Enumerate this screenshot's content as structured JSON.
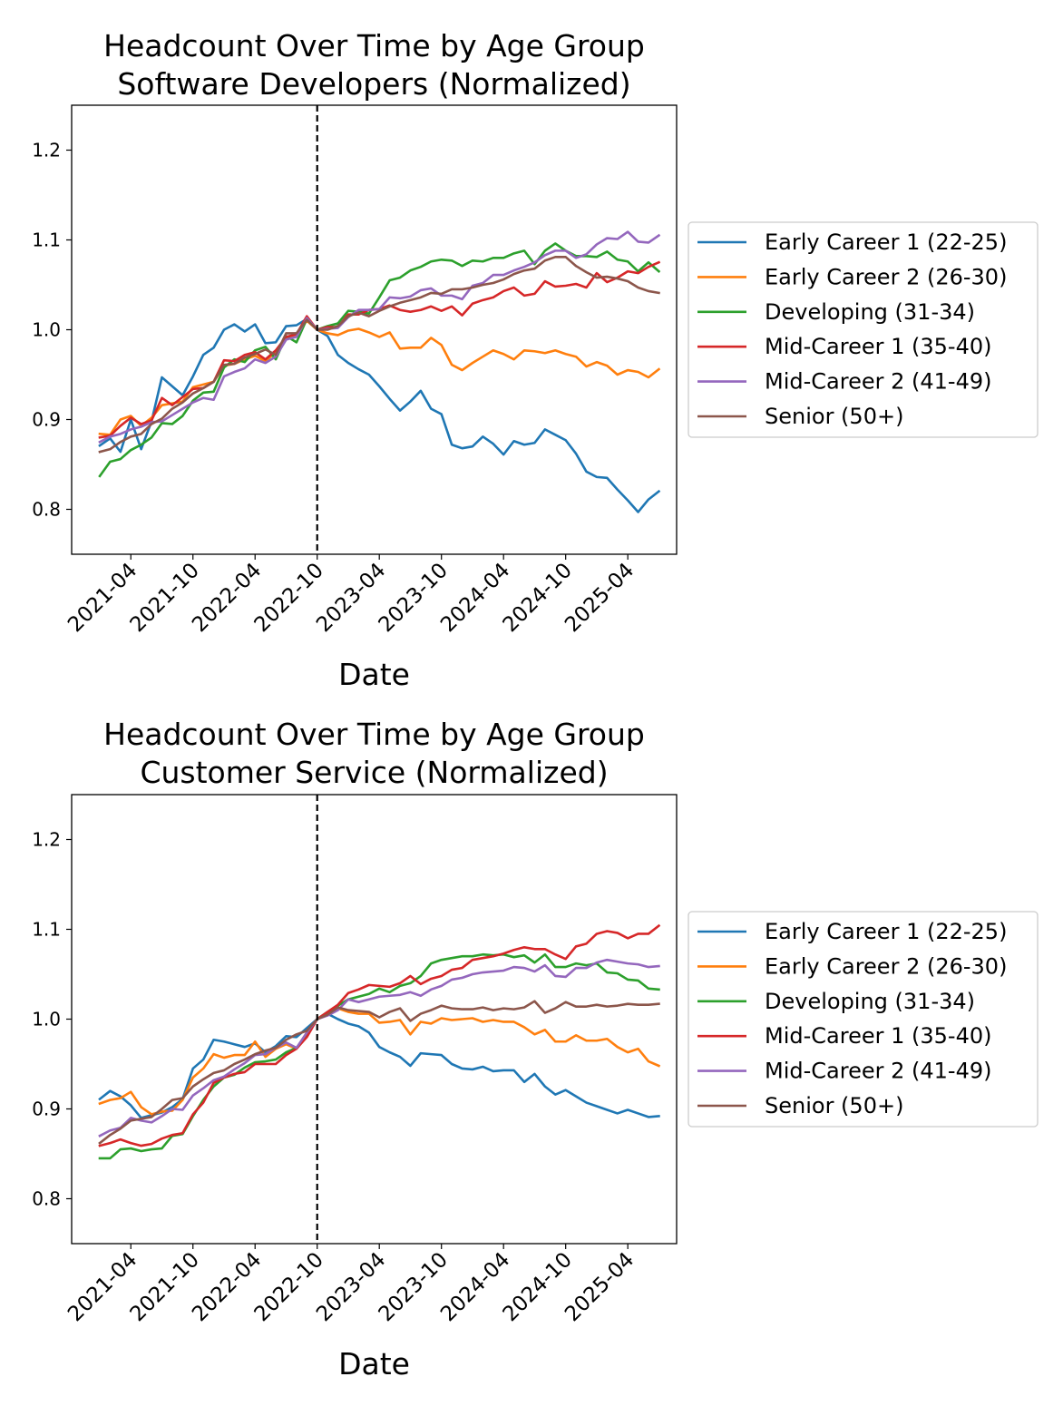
{
  "chart_data": [
    {
      "type": "line",
      "title": "Headcount Over Time by Age Group",
      "subtitle": "Software Developers (Normalized)",
      "xlabel": "Date",
      "ylabel": "",
      "ylim": [
        0.75,
        1.25
      ],
      "yticks": [
        "0.8",
        "0.9",
        "1.0",
        "1.1",
        "1.2"
      ],
      "xticks": [
        "2021-04",
        "2021-10",
        "2022-04",
        "2022-10",
        "2023-04",
        "2023-10",
        "2024-04",
        "2024-10",
        "2025-04"
      ],
      "x_start": "2021-01",
      "x_end": "2025-06",
      "reference_line": "2022-10",
      "legend_position": "center-right",
      "grid": false,
      "series": [
        {
          "name": "Early Career 1 (22-25)",
          "color": "#1f77b4",
          "values": [
            0.871,
            0.879,
            0.864,
            0.9,
            0.867,
            0.898,
            0.947,
            0.937,
            0.927,
            0.948,
            0.972,
            0.98,
            1.0,
            1.006,
            0.998,
            1.006,
            0.985,
            0.986,
            1.004,
            1.005,
            1.012,
            1.0,
            0.993,
            0.972,
            0.963,
            0.956,
            0.95,
            0.937,
            0.923,
            0.91,
            0.92,
            0.932,
            0.912,
            0.906,
            0.872,
            0.868,
            0.87,
            0.881,
            0.873,
            0.861,
            0.876,
            0.872,
            0.874,
            0.889,
            0.883,
            0.877,
            0.862,
            0.842,
            0.836,
            0.835,
            0.822,
            0.81,
            0.797,
            0.811,
            0.82
          ]
        },
        {
          "name": "Early Career 2 (26-30)",
          "color": "#ff7f0e",
          "values": [
            0.884,
            0.883,
            0.9,
            0.904,
            0.893,
            0.902,
            0.916,
            0.918,
            0.92,
            0.936,
            0.939,
            0.942,
            0.96,
            0.962,
            0.967,
            0.971,
            0.965,
            0.975,
            0.99,
            0.995,
            1.01,
            1.0,
            0.996,
            0.994,
            0.999,
            1.001,
            0.997,
            0.992,
            0.997,
            0.979,
            0.98,
            0.98,
            0.991,
            0.983,
            0.961,
            0.955,
            0.963,
            0.97,
            0.977,
            0.973,
            0.967,
            0.977,
            0.976,
            0.974,
            0.977,
            0.973,
            0.97,
            0.959,
            0.964,
            0.96,
            0.95,
            0.955,
            0.953,
            0.947,
            0.956
          ]
        },
        {
          "name": "Developing (31-34)",
          "color": "#2ca02c",
          "values": [
            0.837,
            0.853,
            0.856,
            0.866,
            0.872,
            0.88,
            0.896,
            0.895,
            0.904,
            0.921,
            0.93,
            0.931,
            0.958,
            0.967,
            0.964,
            0.977,
            0.981,
            0.967,
            0.993,
            0.986,
            1.012,
            1.0,
            1.004,
            1.007,
            1.021,
            1.02,
            1.018,
            1.036,
            1.055,
            1.058,
            1.066,
            1.07,
            1.076,
            1.078,
            1.077,
            1.071,
            1.077,
            1.076,
            1.08,
            1.08,
            1.085,
            1.088,
            1.073,
            1.088,
            1.096,
            1.088,
            1.082,
            1.082,
            1.081,
            1.087,
            1.078,
            1.076,
            1.065,
            1.075,
            1.065
          ]
        },
        {
          "name": "Mid-Career 1 (35-40)",
          "color": "#d62728",
          "values": [
            0.88,
            0.882,
            0.893,
            0.902,
            0.895,
            0.899,
            0.924,
            0.916,
            0.925,
            0.934,
            0.935,
            0.942,
            0.966,
            0.965,
            0.972,
            0.975,
            0.967,
            0.977,
            0.992,
            0.995,
            1.015,
            1.0,
            1.003,
            1.003,
            1.017,
            1.017,
            1.022,
            1.023,
            1.027,
            1.022,
            1.02,
            1.022,
            1.026,
            1.021,
            1.026,
            1.016,
            1.029,
            1.033,
            1.036,
            1.043,
            1.047,
            1.038,
            1.04,
            1.054,
            1.048,
            1.049,
            1.051,
            1.047,
            1.063,
            1.053,
            1.058,
            1.065,
            1.063,
            1.07,
            1.075
          ]
        },
        {
          "name": "Mid-Career 2 (41-49)",
          "color": "#9467bd",
          "values": [
            0.875,
            0.881,
            0.884,
            0.889,
            0.892,
            0.897,
            0.898,
            0.905,
            0.912,
            0.919,
            0.924,
            0.922,
            0.948,
            0.953,
            0.957,
            0.967,
            0.963,
            0.97,
            0.989,
            0.992,
            1.013,
            1.0,
            1.001,
            1.002,
            1.014,
            1.022,
            1.022,
            1.023,
            1.036,
            1.035,
            1.037,
            1.044,
            1.046,
            1.038,
            1.038,
            1.034,
            1.049,
            1.052,
            1.061,
            1.061,
            1.066,
            1.07,
            1.075,
            1.083,
            1.088,
            1.088,
            1.08,
            1.084,
            1.095,
            1.102,
            1.101,
            1.109,
            1.098,
            1.097,
            1.105
          ]
        },
        {
          "name": "Senior (50+)",
          "color": "#8c564b",
          "values": [
            0.864,
            0.867,
            0.875,
            0.881,
            0.884,
            0.895,
            0.901,
            0.912,
            0.919,
            0.929,
            0.935,
            0.942,
            0.961,
            0.962,
            0.969,
            0.973,
            0.978,
            0.972,
            0.996,
            0.996,
            1.011,
            1.0,
            1.0,
            1.004,
            1.015,
            1.019,
            1.015,
            1.021,
            1.026,
            1.03,
            1.033,
            1.036,
            1.041,
            1.04,
            1.045,
            1.045,
            1.047,
            1.05,
            1.052,
            1.056,
            1.062,
            1.066,
            1.068,
            1.077,
            1.081,
            1.081,
            1.071,
            1.064,
            1.058,
            1.059,
            1.057,
            1.054,
            1.047,
            1.043,
            1.041
          ]
        }
      ]
    },
    {
      "type": "line",
      "title": "Headcount Over Time by Age Group",
      "subtitle": "Customer Service (Normalized)",
      "xlabel": "Date",
      "ylabel": "",
      "ylim": [
        0.75,
        1.25
      ],
      "yticks": [
        "0.8",
        "0.9",
        "1.0",
        "1.1",
        "1.2"
      ],
      "xticks": [
        "2021-04",
        "2021-10",
        "2022-04",
        "2022-10",
        "2023-04",
        "2023-10",
        "2024-04",
        "2024-10",
        "2025-04"
      ],
      "x_start": "2021-01",
      "x_end": "2025-06",
      "reference_line": "2022-10",
      "legend_position": "center-right",
      "grid": false,
      "series": [
        {
          "name": "Early Career 1 (22-25)",
          "color": "#1f77b4",
          "values": [
            0.911,
            0.92,
            0.914,
            0.904,
            0.89,
            0.893,
            0.896,
            0.902,
            0.911,
            0.945,
            0.955,
            0.977,
            0.975,
            0.972,
            0.969,
            0.973,
            0.963,
            0.97,
            0.981,
            0.98,
            0.99,
            1.0,
            1.006,
            1.0,
            0.995,
            0.992,
            0.985,
            0.969,
            0.963,
            0.958,
            0.948,
            0.962,
            0.961,
            0.96,
            0.95,
            0.945,
            0.944,
            0.947,
            0.942,
            0.943,
            0.943,
            0.93,
            0.939,
            0.925,
            0.916,
            0.921,
            0.914,
            0.907,
            0.903,
            0.899,
            0.895,
            0.899,
            0.895,
            0.891,
            0.892
          ]
        },
        {
          "name": "Early Career 2 (26-30)",
          "color": "#ff7f0e",
          "values": [
            0.906,
            0.91,
            0.912,
            0.919,
            0.902,
            0.894,
            0.897,
            0.898,
            0.91,
            0.935,
            0.945,
            0.961,
            0.957,
            0.96,
            0.96,
            0.975,
            0.958,
            0.967,
            0.972,
            0.967,
            0.985,
            1.0,
            1.007,
            1.012,
            1.008,
            1.006,
            1.006,
            0.996,
            0.997,
            0.999,
            0.983,
            0.997,
            0.995,
            1.001,
            0.999,
            1.0,
            1.001,
            0.997,
            0.999,
            0.997,
            0.997,
            0.991,
            0.983,
            0.988,
            0.975,
            0.975,
            0.982,
            0.976,
            0.976,
            0.978,
            0.969,
            0.963,
            0.967,
            0.953,
            0.948
          ]
        },
        {
          "name": "Developing (31-34)",
          "color": "#2ca02c",
          "values": [
            0.845,
            0.845,
            0.855,
            0.856,
            0.853,
            0.855,
            0.856,
            0.87,
            0.872,
            0.892,
            0.91,
            0.925,
            0.935,
            0.938,
            0.946,
            0.952,
            0.953,
            0.955,
            0.963,
            0.968,
            0.982,
            1.0,
            1.008,
            1.015,
            1.022,
            1.025,
            1.028,
            1.034,
            1.03,
            1.037,
            1.04,
            1.048,
            1.062,
            1.066,
            1.068,
            1.07,
            1.07,
            1.072,
            1.071,
            1.072,
            1.069,
            1.071,
            1.063,
            1.072,
            1.058,
            1.058,
            1.062,
            1.06,
            1.062,
            1.052,
            1.051,
            1.044,
            1.043,
            1.034,
            1.033
          ]
        },
        {
          "name": "Mid-Career 1 (35-40)",
          "color": "#d62728",
          "values": [
            0.859,
            0.862,
            0.866,
            0.862,
            0.859,
            0.861,
            0.867,
            0.871,
            0.873,
            0.894,
            0.907,
            0.929,
            0.935,
            0.939,
            0.941,
            0.95,
            0.95,
            0.95,
            0.96,
            0.967,
            0.98,
            1.0,
            1.008,
            1.016,
            1.029,
            1.033,
            1.038,
            1.037,
            1.036,
            1.04,
            1.048,
            1.039,
            1.045,
            1.048,
            1.055,
            1.057,
            1.066,
            1.068,
            1.07,
            1.073,
            1.077,
            1.08,
            1.078,
            1.078,
            1.072,
            1.067,
            1.081,
            1.084,
            1.095,
            1.098,
            1.096,
            1.09,
            1.095,
            1.095,
            1.104
          ]
        },
        {
          "name": "Mid-Career 2 (41-49)",
          "color": "#9467bd",
          "values": [
            0.87,
            0.876,
            0.879,
            0.89,
            0.887,
            0.885,
            0.892,
            0.9,
            0.899,
            0.915,
            0.923,
            0.932,
            0.936,
            0.944,
            0.951,
            0.96,
            0.961,
            0.968,
            0.974,
            0.968,
            0.985,
            1.0,
            1.004,
            1.01,
            1.022,
            1.019,
            1.022,
            1.025,
            1.026,
            1.027,
            1.03,
            1.026,
            1.033,
            1.037,
            1.044,
            1.046,
            1.05,
            1.052,
            1.053,
            1.054,
            1.058,
            1.057,
            1.053,
            1.06,
            1.048,
            1.047,
            1.057,
            1.057,
            1.063,
            1.066,
            1.064,
            1.062,
            1.061,
            1.058,
            1.059
          ]
        },
        {
          "name": "Senior (50+)",
          "color": "#8c564b",
          "values": [
            0.862,
            0.871,
            0.878,
            0.887,
            0.889,
            0.891,
            0.9,
            0.91,
            0.912,
            0.925,
            0.933,
            0.94,
            0.943,
            0.95,
            0.955,
            0.961,
            0.965,
            0.968,
            0.977,
            0.983,
            0.987,
            1.0,
            1.005,
            1.013,
            1.01,
            1.009,
            1.008,
            1.002,
            1.008,
            1.012,
            0.998,
            1.006,
            1.01,
            1.015,
            1.012,
            1.011,
            1.011,
            1.013,
            1.01,
            1.012,
            1.011,
            1.013,
            1.02,
            1.007,
            1.012,
            1.019,
            1.014,
            1.014,
            1.016,
            1.014,
            1.015,
            1.017,
            1.016,
            1.016,
            1.017
          ]
        }
      ]
    }
  ]
}
